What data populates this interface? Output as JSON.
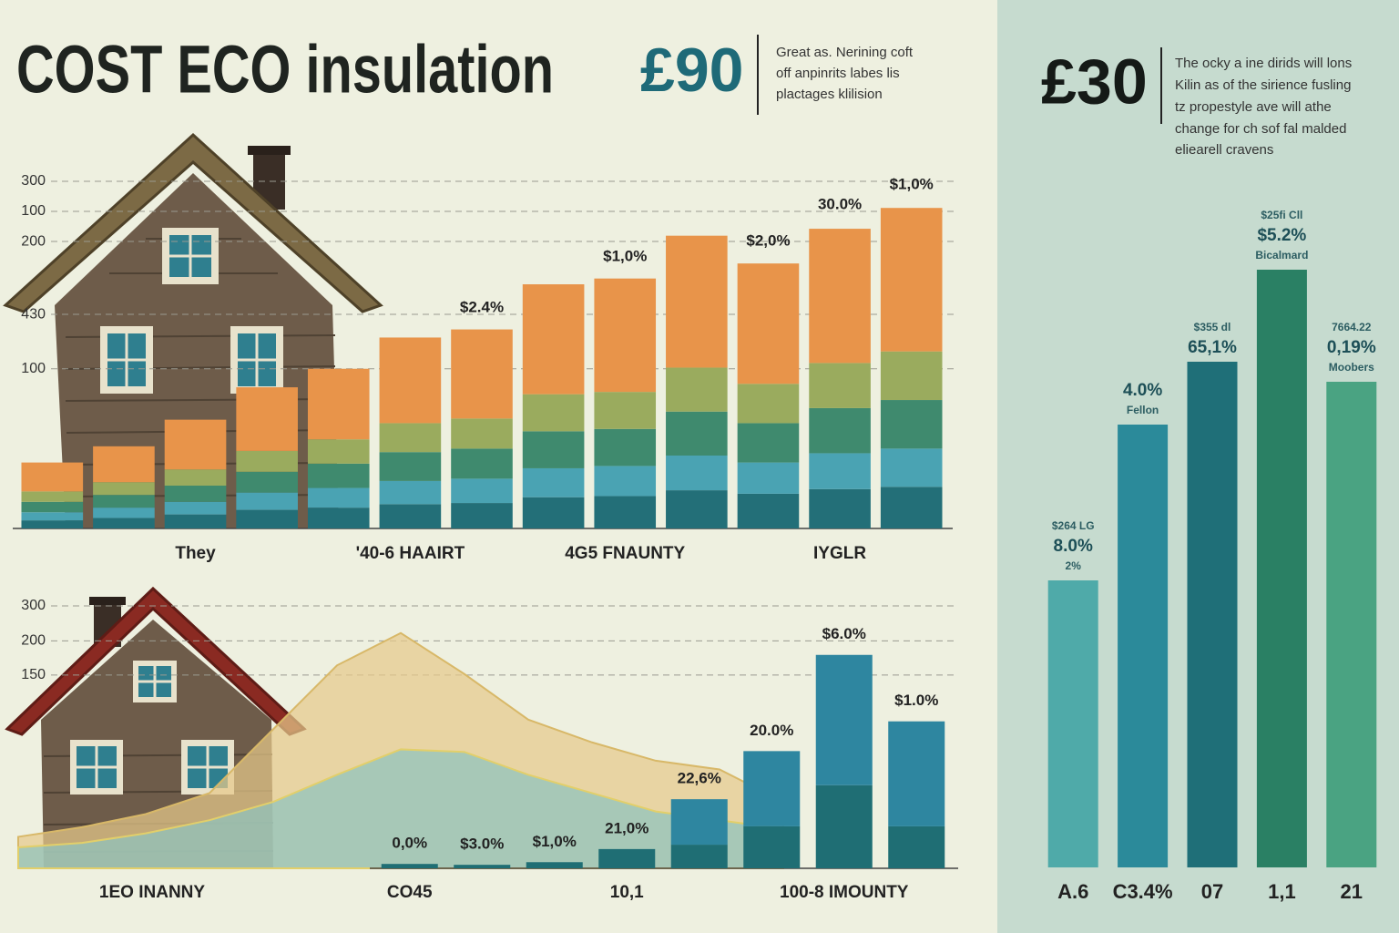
{
  "header": {
    "title": "COST ECO insulation",
    "price_left": "£90",
    "note_left": [
      "Great as. Nerining coft",
      "off anpinrits labes lis",
      "plactages klilision"
    ],
    "price_right": "£30",
    "note_right": [
      "The ocky a ine dirids will lons",
      "Kilin as of the sirience fusling",
      "tz propestyle ave will athe",
      "change for ch sof fal malded",
      "eliearell cravens"
    ]
  },
  "chart_data": [
    {
      "type": "stacked_bar",
      "categories": [
        null,
        null,
        "They",
        null,
        null,
        "'40-6 HAAIRT",
        null,
        null,
        "4G5 FNAUNTY",
        null,
        null,
        "IYGLR",
        null
      ],
      "series": [
        {
          "color": "#236f78",
          "values": [
            7,
            9,
            12,
            16,
            18,
            21,
            22,
            27,
            28,
            33,
            30,
            34,
            36
          ]
        },
        {
          "color": "#4aa3b3",
          "values": [
            7,
            9,
            11,
            15,
            17,
            20,
            21,
            25,
            26,
            30,
            27,
            31,
            33
          ]
        },
        {
          "color": "#3f8a6e",
          "values": [
            9,
            11,
            14,
            18,
            21,
            25,
            26,
            32,
            32,
            38,
            34,
            39,
            42
          ]
        },
        {
          "color": "#9aab5e",
          "values": [
            9,
            11,
            14,
            18,
            21,
            25,
            26,
            32,
            32,
            38,
            34,
            39,
            42
          ]
        },
        {
          "color": "#e8944a",
          "values": [
            25,
            31,
            43,
            55,
            61,
            74,
            77,
            95,
            98,
            114,
            104,
            116,
            124
          ]
        }
      ],
      "ylim": [
        0,
        300
      ],
      "yticks": [
        300,
        {
          "value": 274,
          "label": "100"
        },
        {
          "value": 248,
          "label": "200"
        },
        {
          "value": 185,
          "label": "430"
        },
        {
          "value": 138,
          "label": "100"
        }
      ],
      "grid": true,
      "annotations": [
        "$2.4%",
        "$1,0%",
        "$2,0%",
        "30.0%",
        "$1,0%"
      ]
    },
    {
      "type": "area",
      "x": [
        0,
        1,
        2,
        3,
        4,
        5,
        6,
        7,
        8,
        9,
        10,
        11,
        12
      ],
      "xlim": [
        0,
        12
      ],
      "series": [
        {
          "color": "#e6c98a",
          "values": [
            36,
            47,
            62,
            86,
            159,
            232,
            269,
            222,
            170,
            144,
            123,
            113,
            76
          ]
        },
        {
          "color": "#8ec3bf",
          "values": [
            24,
            29,
            40,
            55,
            76,
            107,
            136,
            133,
            107,
            86,
            65,
            55,
            45
          ]
        }
      ],
      "ylim": [
        0,
        300
      ],
      "yticks": [
        300,
        {
          "value": 260,
          "label": "200"
        },
        {
          "value": 221,
          "label": "150"
        }
      ],
      "grid": true,
      "left_label": "1EO INANNY"
    },
    {
      "type": "stacked_bar",
      "categories": [
        "CO45",
        null,
        null,
        "10,1",
        null,
        null,
        "100-8 IMOUNTY",
        null
      ],
      "series": [
        {
          "color": "#1f6e74",
          "values": [
            5,
            4,
            7,
            22,
            27,
            48,
            95,
            48
          ]
        },
        {
          "color": "#2e86a0",
          "values": [
            0,
            0,
            0,
            0,
            52,
            86,
            149,
            120
          ]
        }
      ],
      "ylim": [
        0,
        300
      ],
      "annotations": [
        "0,0%",
        "$3.0%",
        "$1,0%",
        "21,0%",
        "22,6%",
        "20.0%",
        "$6.0%",
        "$1.0%"
      ]
    },
    {
      "type": "bar",
      "categories": [
        "A.6",
        "C3.4%",
        "07",
        "1,1",
        "21"
      ],
      "values": [
        315,
        486,
        555,
        656,
        533
      ],
      "colors": [
        "#4faaa9",
        "#2b8a9a",
        "#1f6f78",
        "#2a8064",
        "#4aa382"
      ],
      "ylim": [
        0,
        700
      ],
      "annotations": [
        [
          "$264 LG",
          "8.0%",
          "2%"
        ],
        [
          "4.0%",
          "Fellon"
        ],
        [
          "$355 dl",
          "65,1%"
        ],
        [
          "$25fi Cll",
          "$5.2%",
          "Bicalmard"
        ],
        [
          "7664.22",
          "0,19%",
          "Moobers"
        ]
      ]
    }
  ]
}
